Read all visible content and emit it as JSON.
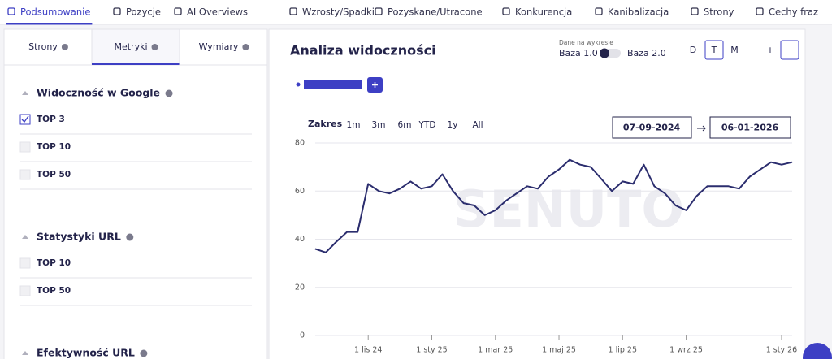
{
  "nav": {
    "tabs": [
      "Podsumowanie",
      "Pozycje",
      "AI Overviews",
      "Wzrosty/Spadki",
      "Pozyskane/Utracone",
      "Konkurencja",
      "Kanibalizacja",
      "Strony",
      "Cechy fraz"
    ],
    "active": 0
  },
  "sidebar": {
    "tabs": [
      "Strony",
      "Metryki",
      "Wymiary"
    ],
    "active": 1,
    "sections": [
      {
        "title": "Widoczność w Google",
        "items": [
          {
            "label": "TOP 3",
            "checked": true
          },
          {
            "label": "TOP 10",
            "checked": false
          },
          {
            "label": "TOP 50",
            "checked": false
          }
        ]
      },
      {
        "title": "Statystyki URL",
        "items": [
          {
            "label": "TOP 10",
            "checked": false
          },
          {
            "label": "TOP 50",
            "checked": false
          }
        ]
      },
      {
        "title": "Efektywność URL",
        "items": []
      }
    ]
  },
  "controls": {
    "data_caption": "Dane na wykresie",
    "base_left": "Baza 1.0",
    "base_right": "Baza 2.0",
    "granularity": [
      "D",
      "T",
      "M"
    ],
    "granularity_active": 1,
    "zoom_in": "+",
    "zoom_out": "−",
    "range_label": "Zakres",
    "ranges": [
      "1m",
      "3m",
      "6m",
      "YTD",
      "1y",
      "All"
    ],
    "date_from": "07-09-2024",
    "date_to": "06-01-2026"
  },
  "watermark": "SENUTO",
  "chart_data": {
    "type": "line",
    "title": "Analiza widoczności",
    "color": "#2b2d6e",
    "legend_color": "#3d3fc4",
    "grid": true,
    "categories": [
      null,
      null,
      null,
      null,
      null,
      "1 lis 24",
      null,
      null,
      null,
      null,
      null,
      "1 sty 25",
      null,
      null,
      null,
      null,
      null,
      "1 mar 25",
      null,
      null,
      null,
      null,
      null,
      "1 maj 25",
      null,
      null,
      null,
      null,
      null,
      "1 lip 25",
      null,
      null,
      null,
      null,
      null,
      "1 wrz 25",
      null,
      null,
      null,
      null,
      null,
      null,
      null,
      null,
      "1 sty 26",
      null
    ],
    "values": [
      36,
      34.5,
      39,
      43,
      43,
      63,
      60,
      59,
      61,
      64,
      61,
      62,
      67,
      60,
      55,
      54,
      50,
      52,
      56,
      59,
      62,
      61,
      66,
      69,
      73,
      71,
      70,
      65,
      60,
      64,
      63,
      71,
      62,
      59,
      54,
      52,
      58,
      62,
      62,
      62,
      61,
      66,
      69,
      72,
      71,
      72
    ],
    "ylim": [
      0,
      80
    ],
    "yticks": [
      0,
      20,
      40,
      60,
      80
    ]
  }
}
